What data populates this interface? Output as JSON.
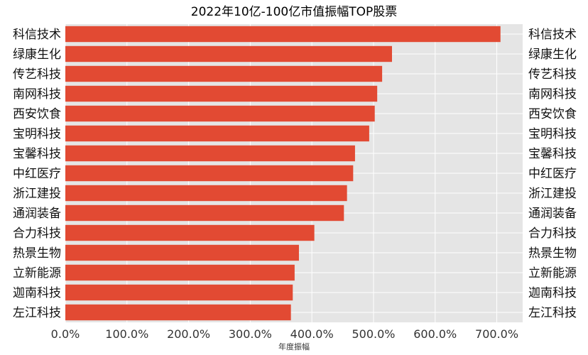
{
  "chart_data": {
    "type": "bar",
    "orientation": "horizontal",
    "title": "2022年10亿-100亿市值振幅TOP股票",
    "xlabel": "年度振幅",
    "ylabel": "",
    "categories": [
      "科信技术",
      "绿康生化",
      "传艺科技",
      "南网科技",
      "西安饮食",
      "宝明科技",
      "宝馨科技",
      "中红医疗",
      "浙江建投",
      "通润装备",
      "合力科技",
      "热景生物",
      "立新能源",
      "迦南科技",
      "左江科技"
    ],
    "values": [
      706,
      530,
      514,
      506,
      502,
      493,
      470,
      467,
      457,
      452,
      404,
      379,
      372,
      369,
      366
    ],
    "unit": "%",
    "xlim": [
      0,
      742
    ],
    "xticks": [
      "0.0%",
      "100.0%",
      "200.0%",
      "300.0%",
      "400.0%",
      "500.0%",
      "600.0%",
      "700.0%"
    ],
    "category_labels_both_sides": true,
    "grid": true,
    "legend": "none",
    "colors": {
      "bar": "#E24A33",
      "plot_bg": "#E5E5E5",
      "grid": "#FFFFFF"
    }
  }
}
